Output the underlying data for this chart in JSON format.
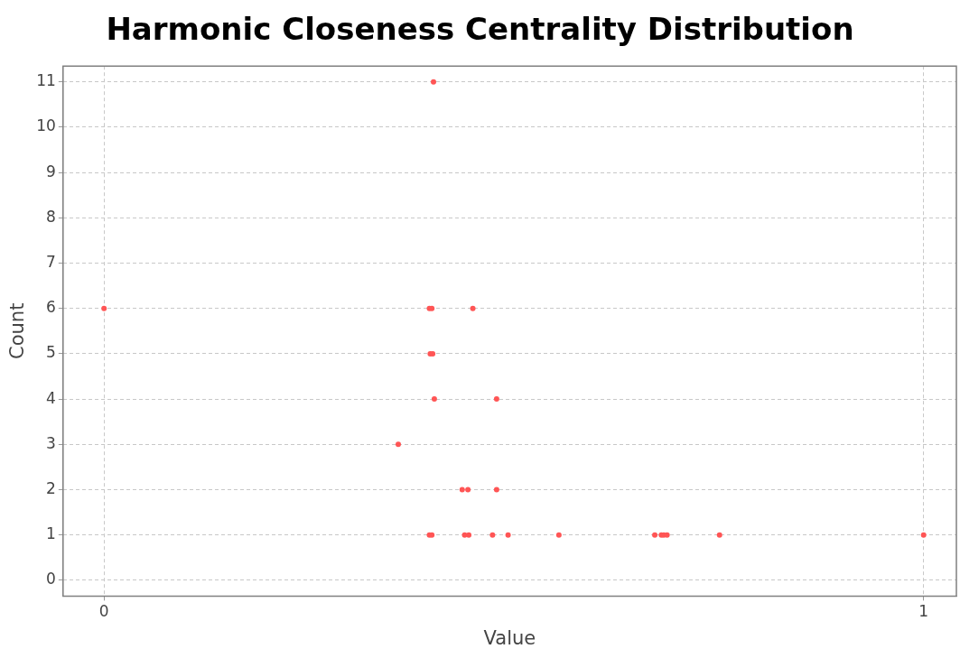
{
  "chart_data": {
    "type": "scatter",
    "title": "Harmonic Closeness Centrality Distribution",
    "xlabel": "Value",
    "ylabel": "Count",
    "x": [
      0.402,
      0,
      0.397,
      0.4,
      0.45,
      0.398,
      0.401,
      0.403,
      0.479,
      0.359,
      0.437,
      0.444,
      0.479,
      0.397,
      0.4,
      0.44,
      0.445,
      0.474,
      0.493,
      0.555,
      0.672,
      0.68,
      0.683,
      0.687,
      0.751,
      1
    ],
    "series": [
      {
        "color": "#ff5555",
        "values": [
          11,
          6,
          6,
          6,
          6,
          5,
          5,
          4,
          4,
          3,
          2,
          2,
          2,
          1,
          1,
          1,
          1,
          1,
          1,
          1,
          1,
          1,
          1,
          1,
          1,
          1
        ]
      }
    ],
    "xlim": [
      -0.05,
      1.04
    ],
    "xticks": [
      0,
      1
    ],
    "ylim": [
      -0.35,
      11.35
    ],
    "yticks": [
      0,
      1,
      2,
      3,
      4,
      5,
      6,
      7,
      8,
      9,
      10,
      11
    ],
    "grid": true,
    "legend": false,
    "marker": "circle"
  }
}
